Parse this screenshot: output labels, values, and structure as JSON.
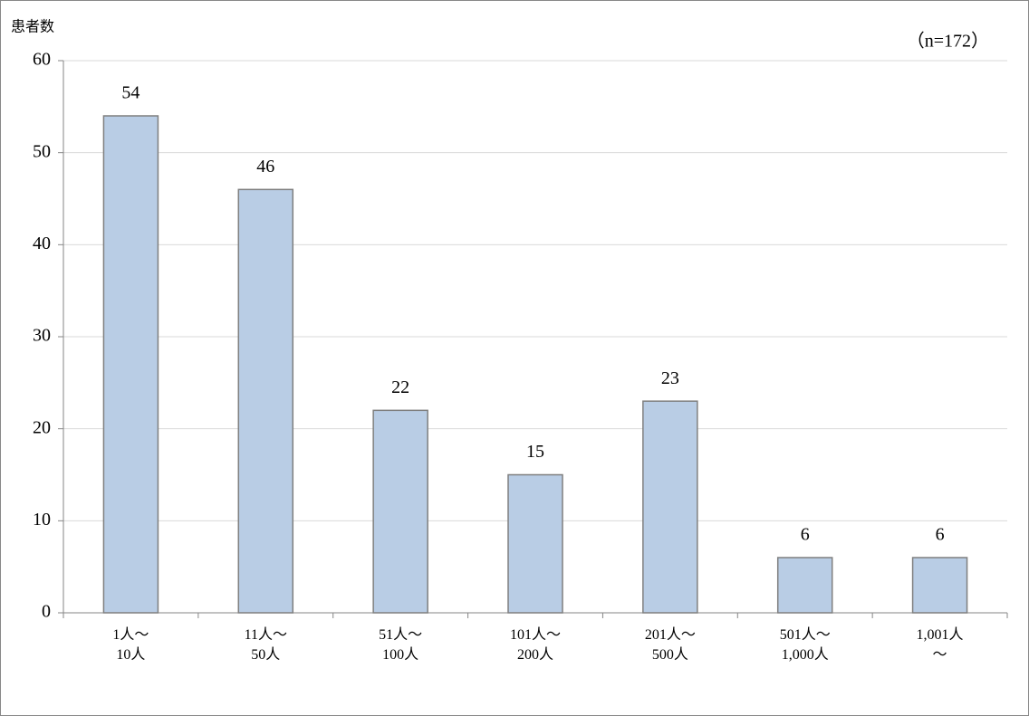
{
  "chart_data": {
    "type": "bar",
    "y_label": "患者数",
    "annotation": "（n=172）",
    "categories": [
      "1人～\n10人",
      "11人～\n50人",
      "51人～\n100人",
      "101人～\n200人",
      "201人～\n500人",
      "501人～\n1,000人",
      "1,001人\n～"
    ],
    "values": [
      54,
      46,
      22,
      15,
      23,
      6,
      6
    ],
    "color": "#b9cde5",
    "ylim": [
      0,
      60
    ],
    "yticks": [
      0,
      10,
      20,
      30,
      40,
      50,
      60
    ],
    "grid": true
  }
}
